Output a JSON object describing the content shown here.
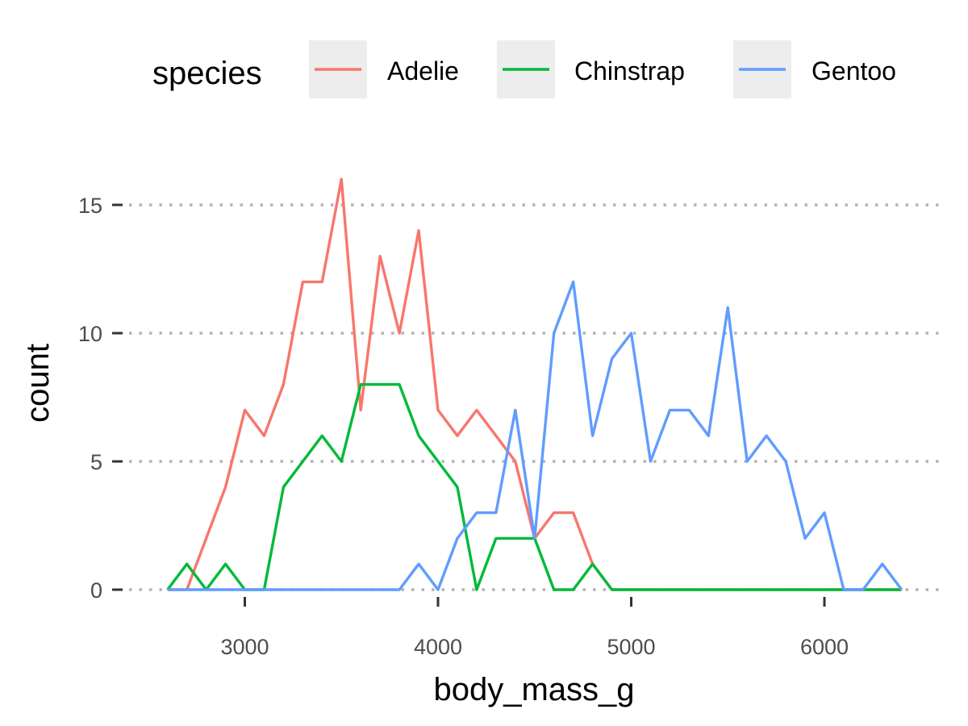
{
  "chart_data": {
    "type": "line",
    "xlabel": "body_mass_g",
    "ylabel": "count",
    "legend": {
      "title": "species",
      "position": "top"
    },
    "grid": {
      "major_y": true,
      "major_x": false,
      "style": "dotted"
    },
    "xlim": [
      2600,
      6400
    ],
    "ylim": [
      0,
      16
    ],
    "x_ticks": [
      3000,
      4000,
      5000,
      6000
    ],
    "y_ticks": [
      0,
      5,
      10,
      15
    ],
    "x": [
      2600,
      2700,
      2800,
      2900,
      3000,
      3100,
      3200,
      3300,
      3400,
      3500,
      3600,
      3700,
      3800,
      3900,
      4000,
      4100,
      4200,
      4300,
      4400,
      4500,
      4600,
      4700,
      4800,
      4900,
      5000,
      5100,
      5200,
      5300,
      5400,
      5500,
      5600,
      5700,
      5800,
      5900,
      6000,
      6100,
      6200,
      6300,
      6400
    ],
    "series": [
      {
        "name": "Adelie",
        "color": "#F8766D",
        "values": [
          0,
          0,
          2,
          4,
          7,
          6,
          8,
          12,
          12,
          16,
          7,
          13,
          10,
          14,
          7,
          6,
          7,
          6,
          5,
          2,
          3,
          3,
          1,
          0,
          0,
          0,
          0,
          0,
          0,
          0,
          0,
          0,
          0,
          0,
          0,
          0,
          0,
          0,
          0
        ]
      },
      {
        "name": "Chinstrap",
        "color": "#00BA38",
        "values": [
          0,
          1,
          0,
          1,
          0,
          0,
          4,
          5,
          6,
          5,
          8,
          8,
          8,
          6,
          5,
          4,
          0,
          2,
          2,
          2,
          0,
          0,
          1,
          0,
          0,
          0,
          0,
          0,
          0,
          0,
          0,
          0,
          0,
          0,
          0,
          0,
          0,
          0,
          0
        ]
      },
      {
        "name": "Gentoo",
        "color": "#619CFF",
        "values": [
          0,
          0,
          0,
          0,
          0,
          0,
          0,
          0,
          0,
          0,
          0,
          0,
          0,
          1,
          0,
          2,
          3,
          3,
          7,
          2,
          10,
          12,
          6,
          9,
          10,
          5,
          7,
          7,
          6,
          11,
          5,
          6,
          5,
          2,
          3,
          0,
          0,
          1,
          0
        ]
      }
    ]
  }
}
